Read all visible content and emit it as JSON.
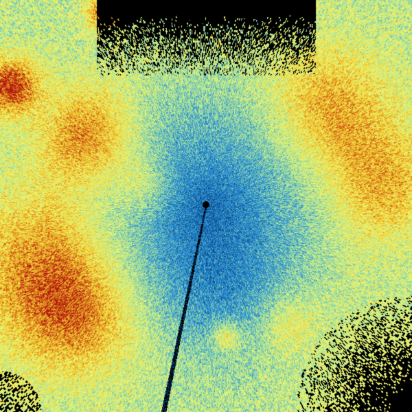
{
  "image": {
    "kind": "radar-scan",
    "palette": [
      "#000000",
      "#0a4a8a",
      "#1a78c0",
      "#3a9ad0",
      "#7cc8b0",
      "#b8e890",
      "#e8f070",
      "#f0d840",
      "#e8a828",
      "#d06018",
      "#b01810"
    ],
    "features": [
      "center-site",
      "radial-beam-blockage-line",
      "no-data-sectors"
    ]
  }
}
